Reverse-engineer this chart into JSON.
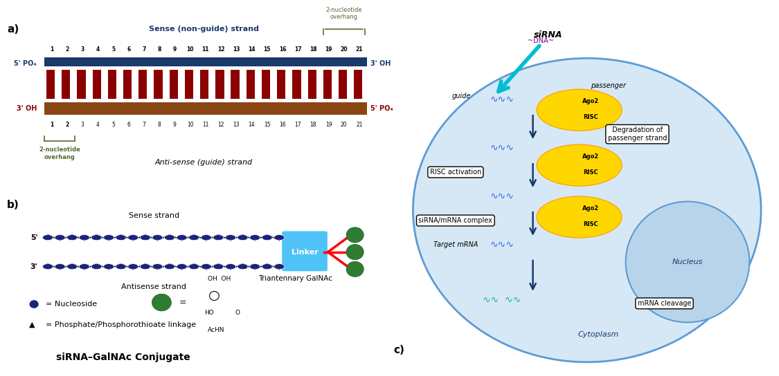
{
  "fig_width": 11.17,
  "fig_height": 5.15,
  "bg_color": "#ffffff",
  "panel_a": {
    "sense_bar_color": "#1a3a6b",
    "sense_light_color": "#a8c4e0",
    "sense_stripe_color": "#6baed6",
    "antisense_bar_color": "#8b0000",
    "antisense_base_color": "#7b3a10",
    "antisense_light_color": "#c0392b",
    "num_nucleotides_sense": 21,
    "num_nucleotides_antisense": 21,
    "label_sense": "Sense (non-guide) strand",
    "label_antisense": "Anti-sense (guide) strand",
    "label_5p_top": "5' PO₄",
    "label_3p_top": "3' OH",
    "label_3p_bot": "3' OH",
    "label_5p_bot": "5' PO₄",
    "overhang_label_top": "2-nucleotide\noverhang",
    "overhang_label_bot": "2-nucleotide\noverhang"
  },
  "panel_b": {
    "title": "siRNA–GalNAc Conjugate",
    "sense_label": "Sense strand",
    "antisense_label": "Antisense strand",
    "five_prime": "5'",
    "three_prime": "3'",
    "linker_color": "#4fc3f7",
    "linker_text": "Linker",
    "nucleoside_color": "#1a237e",
    "galnac_color": "#2e7d32",
    "legend_nucleoside": "= Nucleoside",
    "legend_phosphate": "= Phosphate/Phosphorothioate linkage",
    "legend_galnac": "Triantennary GalNAc"
  },
  "panel_c": {
    "cell_color": "#d6e8f5",
    "cell_border": "#5b9bd5",
    "nucleus_color": "#b8d4ea",
    "nucleus_border": "#5b9bd5",
    "sirna_label": "siRNA",
    "guide_label": "guide",
    "passenger_label": "passenger",
    "ago2_color": "#ffd700",
    "risc_color": "#ffa500",
    "steps": [
      "Degradation of\npassenger strand",
      "RISC activation",
      "siRNA/mRNA complex",
      "Target mRNA",
      "mRNA cleavage"
    ],
    "cytoplasm_label": "Cytoplasm",
    "nucleus_label": "Nucleus"
  }
}
